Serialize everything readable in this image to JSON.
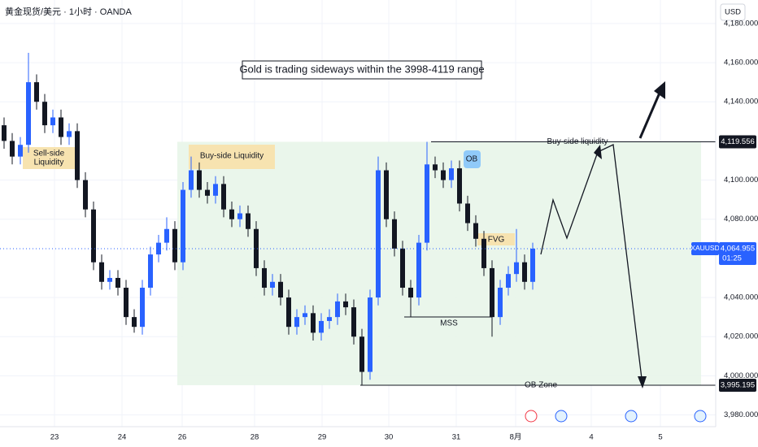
{
  "header": {
    "symbol": "黄金现货/美元 · 1小时 · OANDA",
    "currency": "USD"
  },
  "chart_data": {
    "type": "candlestick",
    "title": "Gold is trading sideways within the 3998-4119 range",
    "open": [
      4128,
      4120,
      4112,
      4118,
      4150,
      4140,
      4128,
      4132,
      4122,
      4125,
      4100,
      4085,
      4058,
      4048,
      4050,
      4045,
      4030,
      4025,
      4045,
      4062,
      4068,
      4075,
      4058,
      4095,
      4105,
      4095,
      4092,
      4098,
      4085,
      4080,
      4083,
      4075,
      4055,
      4045,
      4048,
      4040,
      4025,
      4030,
      4032,
      4022,
      4028,
      4030,
      4038,
      4035,
      4020,
      4002,
      4040,
      4105,
      4080,
      4065,
      4045,
      4040,
      4068,
      4108,
      4105,
      4100,
      4106,
      4088,
      4078,
      4070,
      4055,
      4030,
      4045,
      4052,
      4058,
      4048
    ],
    "high": [
      4132,
      4124,
      4122,
      4165,
      4154,
      4144,
      4136,
      4136,
      4129,
      4129,
      4104,
      4089,
      4062,
      4054,
      4054,
      4049,
      4034,
      4049,
      4066,
      4072,
      4081,
      4079,
      4099,
      4112,
      4109,
      4099,
      4102,
      4102,
      4089,
      4087,
      4087,
      4079,
      4059,
      4052,
      4052,
      4044,
      4034,
      4036,
      4036,
      4032,
      4034,
      4042,
      4042,
      4039,
      4024,
      4044,
      4112,
      4109,
      4084,
      4069,
      4049,
      4072,
      4119.556,
      4112,
      4109,
      4110,
      4110,
      4092,
      4082,
      4074,
      4059,
      4049,
      4056,
      4075,
      4062,
      4068
    ],
    "low": [
      4116,
      4108,
      4108,
      4114,
      4136,
      4124,
      4124,
      4118,
      4118,
      4096,
      4081,
      4054,
      4044,
      4044,
      4041,
      4026,
      4022,
      4021,
      4041,
      4058,
      4064,
      4054,
      4054,
      4091,
      4091,
      4088,
      4088,
      4081,
      4076,
      4076,
      4071,
      4051,
      4041,
      4041,
      4036,
      4021,
      4021,
      4026,
      4018,
      4018,
      4024,
      4026,
      4031,
      4016,
      3995.195,
      3998,
      4036,
      4076,
      4061,
      4041,
      4030,
      4036,
      4064,
      4101,
      4096,
      4096,
      4084,
      4074,
      4066,
      4051,
      4020,
      4026,
      4041,
      4048,
      4044,
      4044
    ],
    "close": [
      4120,
      4112,
      4118,
      4150,
      4140,
      4128,
      4132,
      4122,
      4125,
      4100,
      4085,
      4058,
      4048,
      4050,
      4045,
      4030,
      4025,
      4045,
      4062,
      4068,
      4075,
      4058,
      4095,
      4105,
      4095,
      4092,
      4098,
      4085,
      4080,
      4083,
      4075,
      4055,
      4045,
      4048,
      4040,
      4025,
      4030,
      4032,
      4022,
      4028,
      4030,
      4038,
      4035,
      4020,
      4002,
      4040,
      4105,
      4080,
      4065,
      4045,
      4040,
      4068,
      4108,
      4105,
      4100,
      4106,
      4088,
      4078,
      4070,
      4055,
      4030,
      4045,
      4052,
      4058,
      4048,
      4064.955
    ],
    "up_color": "#2962ff",
    "down_color": "#131722",
    "ylim": [
      3974,
      4192
    ],
    "yticks": [
      {
        "value": 3980,
        "label": "3,980.000"
      },
      {
        "value": 4000,
        "label": "4,000.000"
      },
      {
        "value": 4020,
        "label": "4,020.000"
      },
      {
        "value": 4040,
        "label": "4,040.000"
      },
      {
        "value": 4080,
        "label": "4,080.000"
      },
      {
        "value": 4100,
        "label": "4,100.000"
      },
      {
        "value": 4140,
        "label": "4,140.000"
      },
      {
        "value": 4160,
        "label": "4,160.000"
      },
      {
        "value": 4180,
        "label": "4,180.000"
      }
    ],
    "x_labels": [
      "23",
      "24",
      "26",
      "28",
      "29",
      "30",
      "31",
      "8月",
      "4",
      "5"
    ],
    "grid": true,
    "price_labels": [
      {
        "value": 4119.556,
        "label": "4,119.556"
      },
      {
        "value": 3995.195,
        "label": "3,995.195"
      }
    ],
    "current_price": {
      "symbol": "XAUUSD",
      "label": "4,064.955",
      "countdown": "01:25"
    },
    "annotations": {
      "sell_side": [
        "Sell-side",
        "Liquidity"
      ],
      "buy_side": "Buy-side Liquidity",
      "ob": "OB",
      "fvg": "FVG",
      "mss": "MSS",
      "buy_side_line": "Buy-side liquidity",
      "ob_zone": "OB Zone"
    }
  }
}
